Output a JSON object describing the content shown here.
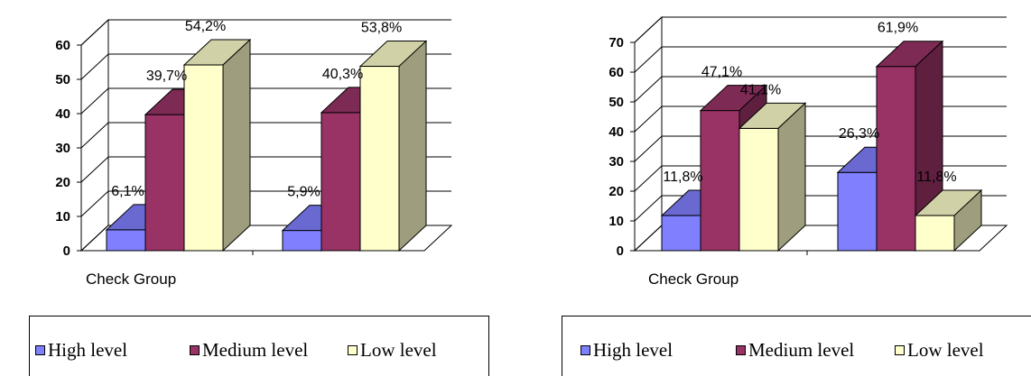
{
  "colors": {
    "high": "#8080ff",
    "medium": "#993366",
    "low": "#ffffcc"
  },
  "chart_data": [
    {
      "type": "bar",
      "categories": [
        "Check Group",
        ""
      ],
      "series": [
        {
          "name": "High level",
          "values": [
            6.1,
            5.9
          ],
          "labels": [
            "6,1%",
            "5,9%"
          ]
        },
        {
          "name": "Medium level",
          "values": [
            39.7,
            40.3
          ],
          "labels": [
            "39,7%",
            "40,3%"
          ]
        },
        {
          "name": "Low level",
          "values": [
            54.2,
            53.8
          ],
          "labels": [
            "54,2%",
            "53,8%"
          ]
        }
      ],
      "yticks": [
        "0",
        "10",
        "20",
        "30",
        "40",
        "50",
        "60"
      ],
      "ylim": [
        0,
        60
      ],
      "grid": true,
      "legend": "bottom"
    },
    {
      "type": "bar",
      "categories": [
        "Check Group",
        ""
      ],
      "series": [
        {
          "name": "High level",
          "values": [
            11.8,
            26.3
          ],
          "labels": [
            "11,8%",
            "26,3%"
          ]
        },
        {
          "name": "Medium level",
          "values": [
            47.1,
            61.9
          ],
          "labels": [
            "47,1%",
            "61,9%"
          ]
        },
        {
          "name": "Low level",
          "values": [
            41.1,
            11.8
          ],
          "labels": [
            "41,1%",
            "11,8%"
          ]
        }
      ],
      "yticks": [
        "0",
        "10",
        "20",
        "30",
        "40",
        "50",
        "60",
        "70"
      ],
      "ylim": [
        0,
        70
      ],
      "grid": true,
      "legend": "bottom"
    }
  ]
}
